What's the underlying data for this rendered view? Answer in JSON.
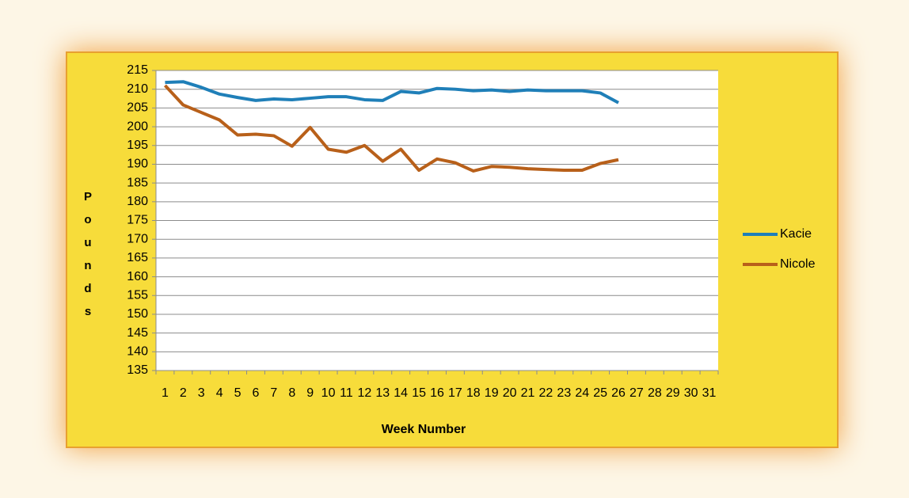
{
  "chart_data": {
    "type": "line",
    "x_label": "Week Number",
    "y_label": "Pounds",
    "categories": [
      "1",
      "2",
      "3",
      "4",
      "5",
      "6",
      "7",
      "8",
      "9",
      "10",
      "11",
      "12",
      "13",
      "14",
      "15",
      "16",
      "17",
      "18",
      "19",
      "20",
      "21",
      "22",
      "23",
      "24",
      "25",
      "26",
      "27",
      "28",
      "29",
      "30",
      "31"
    ],
    "series": [
      {
        "name": "Kacie",
        "color": "#1f7fb8",
        "values": [
          211.8,
          212,
          210.5,
          208.7,
          207.8,
          207,
          207.4,
          207.2,
          207.6,
          208,
          208,
          207.2,
          207,
          209.4,
          209,
          210.2,
          210,
          209.6,
          209.8,
          209.4,
          209.8,
          209.6,
          209.6,
          209.6,
          209,
          206.4,
          null,
          null,
          null,
          null,
          null
        ]
      },
      {
        "name": "Nicole",
        "color": "#b8601a",
        "values": [
          211,
          205.8,
          203.8,
          201.8,
          197.8,
          198,
          197.6,
          194.8,
          199.8,
          194,
          193.2,
          195,
          190.8,
          194,
          188.4,
          191.4,
          190.4,
          188.2,
          189.4,
          189.2,
          188.8,
          188.6,
          188.4,
          188.4,
          190.2,
          191.2,
          null,
          null,
          null,
          null,
          null
        ]
      }
    ],
    "ylim": [
      135,
      215
    ],
    "yticks": [
      135,
      140,
      145,
      150,
      155,
      160,
      165,
      170,
      175,
      180,
      185,
      190,
      195,
      200,
      205,
      210,
      215
    ],
    "grid": true,
    "legend": "right"
  }
}
